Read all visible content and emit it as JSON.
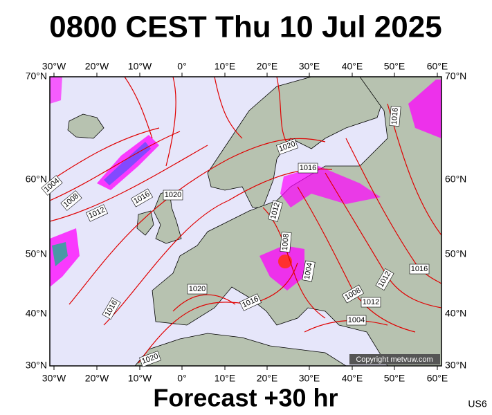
{
  "header": {
    "title": "0800 CEST Thu 10 Jul 2025"
  },
  "map": {
    "lon_labels": [
      "30°W",
      "20°W",
      "10°W",
      "0°",
      "10°E",
      "20°E",
      "30°E",
      "40°E",
      "50°E",
      "60°E"
    ],
    "lat_labels": [
      "70°N",
      "60°N",
      "50°N",
      "40°N",
      "30°N"
    ],
    "isobar_labels": [
      "1004",
      "1008",
      "1012",
      "1016",
      "1020",
      "1020",
      "1016",
      "1012",
      "1008",
      "1004",
      "1016",
      "1012",
      "1008",
      "1012",
      "1004",
      "1020",
      "1016",
      "1016",
      "1020",
      "1016"
    ],
    "copyright": "Copyright metvuw.com"
  },
  "footer": {
    "forecast": "Forecast +30 hr",
    "code": "US6"
  }
}
